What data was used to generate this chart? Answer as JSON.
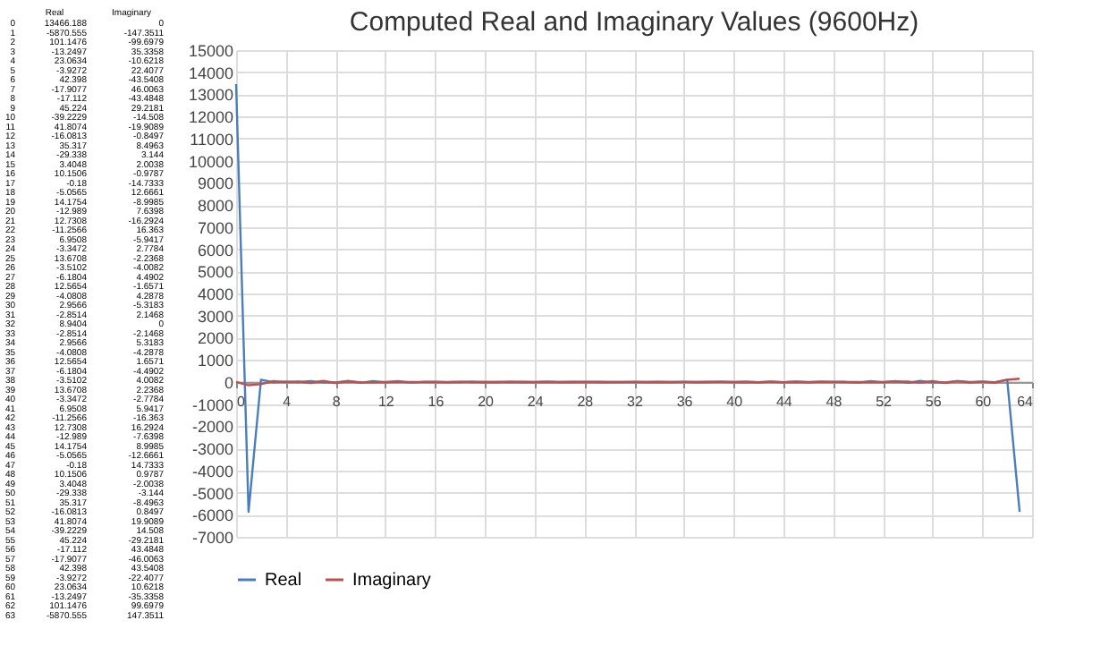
{
  "chart_data": [
    {
      "type": "heatmap",
      "categories": [
        "Real",
        "Imaginary"
      ],
      "data_labels": true,
      "y_categories": [
        "0",
        "1",
        "2",
        "3",
        "4",
        "5",
        "6",
        "7",
        "8",
        "9",
        "10",
        "11",
        "12",
        "13",
        "14",
        "15",
        "16",
        "17",
        "18",
        "19",
        "20",
        "21",
        "22",
        "23",
        "24",
        "25",
        "26",
        "27",
        "28",
        "29",
        "30",
        "31",
        "32",
        "33",
        "34",
        "35",
        "36",
        "37",
        "38",
        "39",
        "40",
        "41",
        "42",
        "43",
        "44",
        "45",
        "46",
        "47",
        "48",
        "49",
        "50",
        "51",
        "52",
        "53",
        "54",
        "55",
        "56",
        "57",
        "58",
        "59",
        "60",
        "61",
        "62",
        "63"
      ],
      "cells": [
        [
          13466.188,
          0
        ],
        [
          -5870.555,
          -147.3511
        ],
        [
          101.1476,
          -99.6979
        ],
        [
          -13.2497,
          35.3358
        ],
        [
          23.0634,
          -10.6218
        ],
        [
          -3.9272,
          22.4077
        ],
        [
          42.398,
          -43.5408
        ],
        [
          -17.9077,
          46.0063
        ],
        [
          -17.112,
          -43.4848
        ],
        [
          45.224,
          29.2181
        ],
        [
          -39.2229,
          -14.508
        ],
        [
          41.8074,
          -19.9089
        ],
        [
          -16.0813,
          -0.8497
        ],
        [
          35.317,
          8.4963
        ],
        [
          -29.338,
          3.144
        ],
        [
          3.4048,
          2.0038
        ],
        [
          10.1506,
          -0.9787
        ],
        [
          -0.18,
          -14.7333
        ],
        [
          -5.0565,
          12.6661
        ],
        [
          14.1754,
          -8.9985
        ],
        [
          -12.989,
          7.6398
        ],
        [
          12.7308,
          -16.2924
        ],
        [
          -11.2566,
          16.363
        ],
        [
          6.9508,
          -5.9417
        ],
        [
          -3.3472,
          2.7784
        ],
        [
          13.6708,
          -2.2368
        ],
        [
          -3.5102,
          -4.0082
        ],
        [
          -6.1804,
          4.4902
        ],
        [
          12.5654,
          -1.6571
        ],
        [
          -4.0808,
          4.2878
        ],
        [
          2.9566,
          -5.3183
        ],
        [
          -2.8514,
          2.1468
        ],
        [
          8.9404,
          0
        ],
        [
          -2.8514,
          -2.1468
        ],
        [
          2.9566,
          5.3183
        ],
        [
          -4.0808,
          -4.2878
        ],
        [
          12.5654,
          1.6571
        ],
        [
          -6.1804,
          -4.4902
        ],
        [
          -3.5102,
          4.0082
        ],
        [
          13.6708,
          2.2368
        ],
        [
          -3.3472,
          -2.7784
        ],
        [
          6.9508,
          5.9417
        ],
        [
          -11.2566,
          -16.363
        ],
        [
          12.7308,
          16.2924
        ],
        [
          -12.989,
          -7.6398
        ],
        [
          14.1754,
          8.9985
        ],
        [
          -5.0565,
          -12.6661
        ],
        [
          -0.18,
          14.7333
        ],
        [
          10.1506,
          0.9787
        ],
        [
          3.4048,
          -2.0038
        ],
        [
          -29.338,
          -3.144
        ],
        [
          35.317,
          -8.4963
        ],
        [
          -16.0813,
          0.8497
        ],
        [
          41.8074,
          19.9089
        ],
        [
          -39.2229,
          14.508
        ],
        [
          45.224,
          -29.2181
        ],
        [
          -17.112,
          43.4848
        ],
        [
          -17.9077,
          -46.0063
        ],
        [
          42.398,
          43.5408
        ],
        [
          -3.9272,
          -22.4077
        ],
        [
          23.0634,
          10.6218
        ],
        [
          -13.2497,
          -35.3358
        ],
        [
          101.1476,
          99.6979
        ],
        [
          -5870.555,
          147.3511
        ]
      ]
    },
    {
      "type": "line",
      "title": "Computed Real and Imaginary Values (9600Hz)",
      "x": [
        0,
        1,
        2,
        3,
        4,
        5,
        6,
        7,
        8,
        9,
        10,
        11,
        12,
        13,
        14,
        15,
        16,
        17,
        18,
        19,
        20,
        21,
        22,
        23,
        24,
        25,
        26,
        27,
        28,
        29,
        30,
        31,
        32,
        33,
        34,
        35,
        36,
        37,
        38,
        39,
        40,
        41,
        42,
        43,
        44,
        45,
        46,
        47,
        48,
        49,
        50,
        51,
        52,
        53,
        54,
        55,
        56,
        57,
        58,
        59,
        60,
        61,
        62,
        63
      ],
      "series": [
        {
          "name": "Real",
          "color": "#4a7ebb",
          "values": [
            13466.188,
            -5870.555,
            101.1476,
            -13.2497,
            23.0634,
            -3.9272,
            42.398,
            -17.9077,
            -17.112,
            45.224,
            -39.2229,
            41.8074,
            -16.0813,
            35.317,
            -29.338,
            3.4048,
            10.1506,
            -0.18,
            -5.0565,
            14.1754,
            -12.989,
            12.7308,
            -11.2566,
            6.9508,
            -3.3472,
            13.6708,
            -3.5102,
            -6.1804,
            12.5654,
            -4.0808,
            2.9566,
            -2.8514,
            8.9404,
            -2.8514,
            2.9566,
            -4.0808,
            12.5654,
            -6.1804,
            -3.5102,
            13.6708,
            -3.3472,
            6.9508,
            -11.2566,
            12.7308,
            -12.989,
            14.1754,
            -5.0565,
            -0.18,
            10.1506,
            3.4048,
            -29.338,
            35.317,
            -16.0813,
            41.8074,
            -39.2229,
            45.224,
            -17.112,
            -17.9077,
            42.398,
            -3.9272,
            23.0634,
            -13.2497,
            101.1476,
            -5870.555
          ]
        },
        {
          "name": "Imaginary",
          "color": "#c0504d",
          "values": [
            0,
            -147.3511,
            -99.6979,
            35.3358,
            -10.6218,
            22.4077,
            -43.5408,
            46.0063,
            -43.4848,
            29.2181,
            -14.508,
            -19.9089,
            -0.8497,
            8.4963,
            3.144,
            2.0038,
            -0.9787,
            -14.7333,
            12.6661,
            -8.9985,
            7.6398,
            -16.2924,
            16.363,
            -5.9417,
            2.7784,
            -2.2368,
            -4.0082,
            4.4902,
            -1.6571,
            4.2878,
            -5.3183,
            2.1468,
            0,
            -2.1468,
            5.3183,
            -4.2878,
            1.6571,
            -4.4902,
            4.0082,
            2.2368,
            -2.7784,
            5.9417,
            -16.363,
            16.2924,
            -7.6398,
            8.9985,
            -12.6661,
            14.7333,
            0.9787,
            -2.0038,
            -3.144,
            -8.4963,
            0.8497,
            19.9089,
            14.508,
            -29.2181,
            43.4848,
            -46.0063,
            43.5408,
            -22.4077,
            10.6218,
            -35.3358,
            99.6979,
            147.3511
          ]
        }
      ],
      "xlim": [
        0,
        64
      ],
      "xticks": [
        0,
        4,
        8,
        12,
        16,
        20,
        24,
        28,
        32,
        36,
        40,
        44,
        48,
        52,
        56,
        60,
        64
      ],
      "ylim": [
        -7000,
        15000
      ],
      "yticks": [
        -7000,
        -6000,
        -5000,
        -4000,
        -3000,
        -2000,
        -1000,
        0,
        1000,
        2000,
        3000,
        4000,
        5000,
        6000,
        7000,
        8000,
        9000,
        10000,
        11000,
        12000,
        13000,
        14000,
        15000
      ],
      "grid": true,
      "legend": "bottom"
    }
  ]
}
